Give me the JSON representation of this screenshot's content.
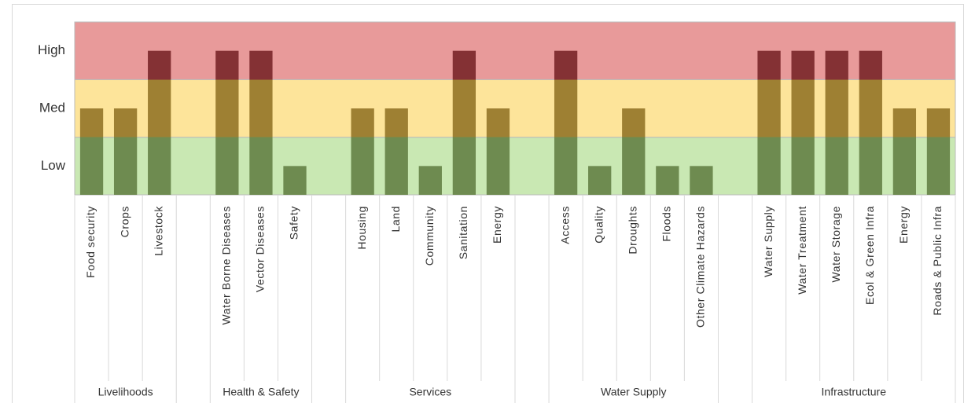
{
  "chart_data": {
    "type": "bar",
    "categories": [
      "Food security",
      "Crops",
      "Livestock",
      null,
      "Water Borne Diseases",
      "Vector Diseases",
      "Safety",
      null,
      "Housing",
      "Land",
      "Community",
      "Sanitation",
      "Energy",
      null,
      "Access",
      "Quality",
      "Droughts",
      "Floods",
      "Other Climate Hazards",
      null,
      "Water Supply",
      "Water Treatment",
      "Water Storage",
      "Ecol & Green Infra",
      "Energy",
      "Roads & Public Infra"
    ],
    "values": [
      2,
      2,
      3,
      null,
      3,
      3,
      1,
      null,
      2,
      2,
      1,
      3,
      2,
      null,
      3,
      1,
      2,
      1,
      1,
      null,
      3,
      3,
      3,
      3,
      2,
      2
    ],
    "groups": [
      "Livelihoods",
      "Health & Safety",
      "Services",
      "Water Supply",
      "Infrastructure"
    ],
    "ylim": [
      0.5,
      3.5
    ],
    "yticks": [
      {
        "value": 1,
        "label": "Low"
      },
      {
        "value": 2,
        "label": "Med"
      },
      {
        "value": 3,
        "label": "High"
      }
    ],
    "band_colors": [
      "#c9e8b3",
      "#fde49a",
      "#e89a9a"
    ],
    "bar_colors": [
      "#6e8b50",
      "#9e8033",
      "#843134"
    ]
  }
}
